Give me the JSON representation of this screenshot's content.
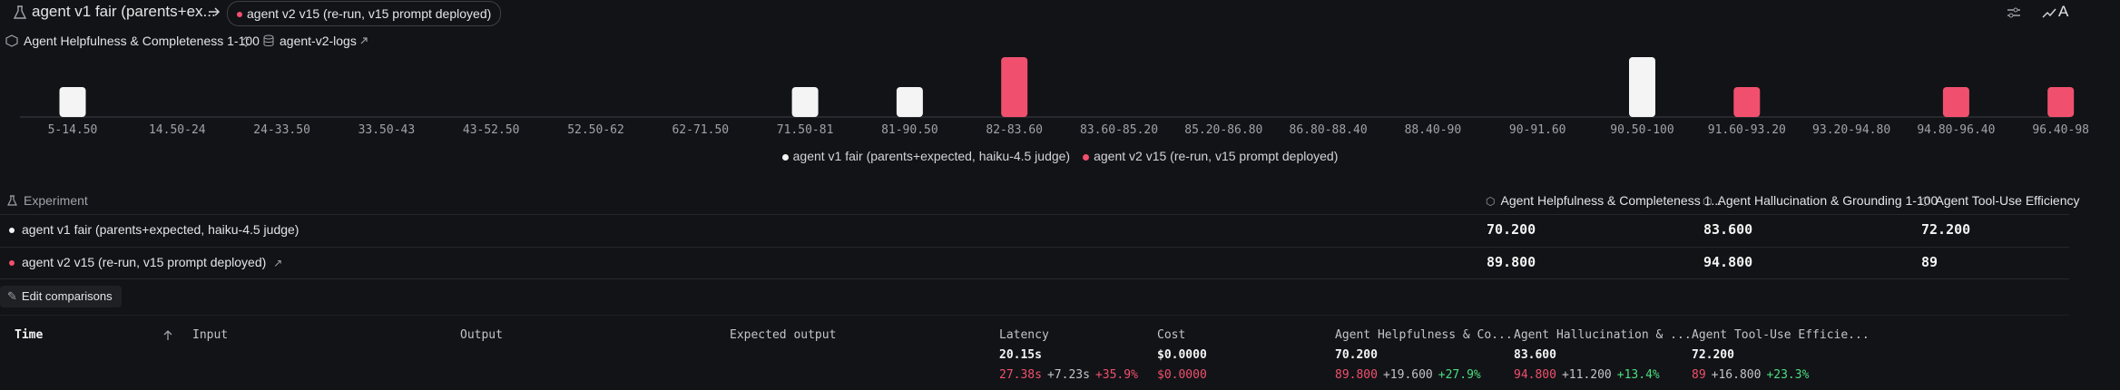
{
  "top_bar": {
    "experiment": "agent v1 fair (parents+ex...",
    "comparison": "agent v2 v15 (re-run, v15 prompt deployed)",
    "right_label": "A"
  },
  "filter_bar": {
    "score": "Agent Helpfulness & Completeness 1-100",
    "dataset": "agent-v2-logs"
  },
  "chart_data": {
    "type": "bar",
    "categories": [
      "5-14.50",
      "14.50-24",
      "24-33.50",
      "33.50-43",
      "43-52.50",
      "52.50-62",
      "62-71.50",
      "71.50-81",
      "81-90.50",
      "82-83.60",
      "83.60-85.20",
      "85.20-86.80",
      "86.80-88.40",
      "88.40-90",
      "90-91.60",
      "90.50-100",
      "91.60-93.20",
      "93.20-94.80",
      "94.80-96.40",
      "96.40-98"
    ],
    "series": [
      {
        "name": "agent v1 fair (parents+expected, haiku-4.5 judge)",
        "color": "#f4f4f5",
        "values": [
          1,
          null,
          null,
          null,
          null,
          null,
          null,
          1,
          1,
          null,
          null,
          null,
          null,
          null,
          null,
          2,
          null,
          null,
          null,
          null
        ]
      },
      {
        "name": "agent v2 v15 (re-run, v15 prompt deployed)",
        "color": "#f0506e",
        "values": [
          null,
          null,
          null,
          null,
          null,
          null,
          null,
          null,
          null,
          2,
          null,
          null,
          null,
          null,
          null,
          null,
          1,
          null,
          1,
          1
        ]
      }
    ]
  },
  "experiments": {
    "header": "Experiment",
    "columns": [
      "Agent Helpfulness & Completeness 1...",
      "Agent Hallucination & Grounding 1-100",
      "Agent Tool-Use Efficiency"
    ],
    "rows": [
      {
        "name": "agent v1 fair (parents+expected, haiku-4.5 judge)",
        "values": [
          "70.200",
          "83.600",
          "72.200"
        ]
      },
      {
        "name": "agent v2 v15 (re-run, v15 prompt deployed)",
        "values": [
          "89.800",
          "94.800",
          "89"
        ]
      }
    ]
  },
  "edit_button": "Edit comparisons",
  "results": {
    "columns": [
      "Time",
      "Input",
      "Output",
      "Expected output",
      "Latency",
      "Cost",
      "Agent Helpfulness & Co...",
      "Agent Hallucination & ...",
      "Agent Tool-Use Efficie..."
    ],
    "base": [
      "20.15s",
      "$0.0000",
      "70.200",
      "83.600",
      "72.200"
    ],
    "compare": [
      [
        "27.38s",
        "+7.23s",
        "+35.9%"
      ],
      [
        "$0.0000"
      ],
      [
        "89.800",
        "+19.600",
        "+27.9%"
      ],
      [
        "94.800",
        "+11.200",
        "+13.4%"
      ],
      [
        "89",
        "+16.800",
        "+23.3%"
      ]
    ]
  }
}
